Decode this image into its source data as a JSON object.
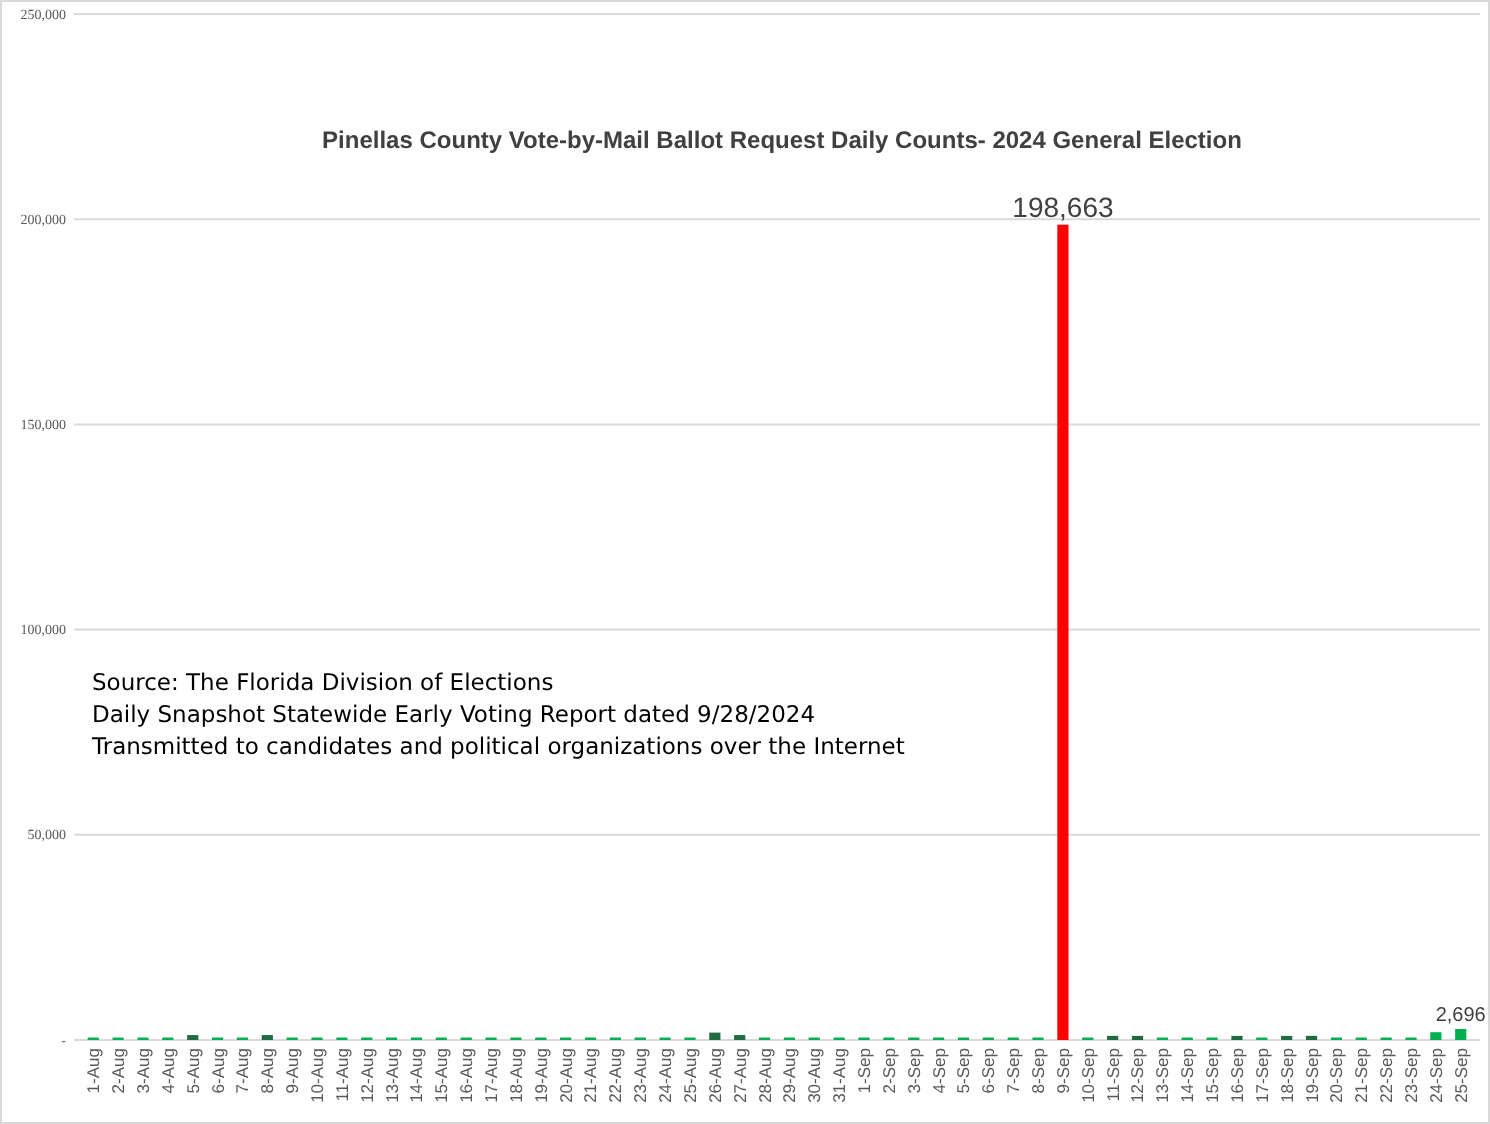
{
  "chart_data": {
    "type": "bar",
    "title": "Pinellas County Vote-by-Mail Ballot Request Daily Counts-  2024 General Election",
    "categories": [
      "1-Aug",
      "2-Aug",
      "3-Aug",
      "4-Aug",
      "5-Aug",
      "6-Aug",
      "7-Aug",
      "8-Aug",
      "9-Aug",
      "10-Aug",
      "11-Aug",
      "12-Aug",
      "13-Aug",
      "14-Aug",
      "15-Aug",
      "16-Aug",
      "17-Aug",
      "18-Aug",
      "19-Aug",
      "20-Aug",
      "21-Aug",
      "22-Aug",
      "23-Aug",
      "24-Aug",
      "25-Aug",
      "26-Aug",
      "27-Aug",
      "28-Aug",
      "29-Aug",
      "30-Aug",
      "31-Aug",
      "1-Sep",
      "2-Sep",
      "3-Sep",
      "4-Sep",
      "5-Sep",
      "6-Sep",
      "7-Sep",
      "8-Sep",
      "9-Sep",
      "10-Sep",
      "11-Sep",
      "12-Sep",
      "13-Sep",
      "14-Sep",
      "15-Sep",
      "16-Sep",
      "17-Sep",
      "18-Sep",
      "19-Sep",
      "20-Sep",
      "21-Sep",
      "22-Sep",
      "23-Sep",
      "24-Sep",
      "25-Sep"
    ],
    "values": [
      600,
      600,
      600,
      600,
      1200,
      600,
      600,
      1200,
      600,
      600,
      600,
      600,
      600,
      600,
      600,
      600,
      600,
      600,
      600,
      600,
      600,
      600,
      600,
      600,
      600,
      1800,
      1200,
      600,
      600,
      600,
      600,
      600,
      600,
      600,
      600,
      600,
      600,
      600,
      600,
      198663,
      600,
      1000,
      1000,
      600,
      600,
      600,
      1000,
      600,
      1000,
      1000,
      600,
      600,
      600,
      600,
      1900,
      2696
    ],
    "colors": [
      "#00b050",
      "#00b050",
      "#00b050",
      "#00b050",
      "#1f6b3f",
      "#00b050",
      "#00b050",
      "#1f6b3f",
      "#00b050",
      "#00b050",
      "#00b050",
      "#00b050",
      "#00b050",
      "#00b050",
      "#00b050",
      "#00b050",
      "#00b050",
      "#00b050",
      "#00b050",
      "#00b050",
      "#00b050",
      "#00b050",
      "#00b050",
      "#00b050",
      "#00b050",
      "#1f6b3f",
      "#1f6b3f",
      "#00b050",
      "#00b050",
      "#00b050",
      "#00b050",
      "#00b050",
      "#00b050",
      "#00b050",
      "#00b050",
      "#00b050",
      "#00b050",
      "#00b050",
      "#00b050",
      "#ff0000",
      "#00b050",
      "#1f6b3f",
      "#1f6b3f",
      "#00b050",
      "#00b050",
      "#00b050",
      "#1f6b3f",
      "#00b050",
      "#1f6b3f",
      "#1f6b3f",
      "#00b050",
      "#00b050",
      "#00b050",
      "#00b050",
      "#00b050",
      "#00b050"
    ],
    "value_labels": [
      null,
      null,
      null,
      null,
      null,
      null,
      null,
      null,
      null,
      null,
      null,
      null,
      null,
      null,
      null,
      null,
      null,
      null,
      null,
      null,
      null,
      null,
      null,
      null,
      null,
      null,
      null,
      null,
      null,
      null,
      null,
      null,
      null,
      null,
      null,
      null,
      null,
      null,
      null,
      "198,663",
      null,
      null,
      null,
      null,
      null,
      null,
      null,
      null,
      null,
      null,
      null,
      null,
      null,
      null,
      null,
      "2,696"
    ],
    "ylim": [
      0,
      250000
    ],
    "yticks": [
      {
        "value": 0,
        "label": "-"
      },
      {
        "value": 50000,
        "label": "50,000"
      },
      {
        "value": 100000,
        "label": "100,000"
      },
      {
        "value": 150000,
        "label": "150,000"
      },
      {
        "value": 200000,
        "label": "200,000"
      },
      {
        "value": 250000,
        "label": "250,000"
      }
    ],
    "grid": "y",
    "annotations": [
      "Source: The Florida Division of Elections",
      "Daily Snapshot Statewide Early Voting Report dated 9/28/2024",
      "Transmitted to candidates and political organizations over the Internet"
    ]
  }
}
